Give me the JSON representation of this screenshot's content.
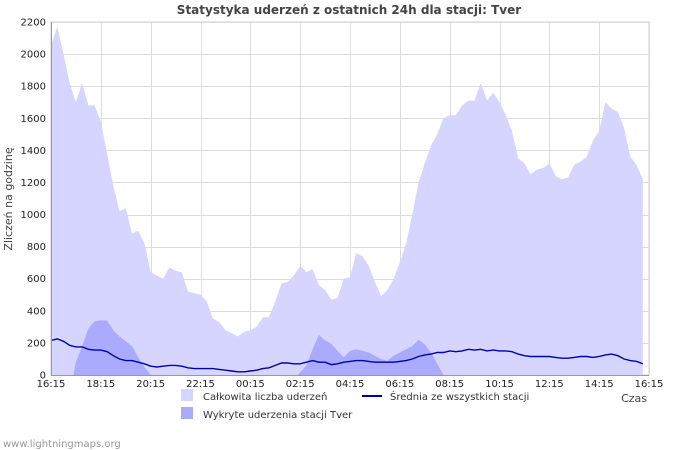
{
  "chart_data": {
    "type": "area",
    "title": "Statystyka uderzeń z ostatnich 24h dla stacji: Tver",
    "ylabel": "Zliczeń na godzinę",
    "xlabel": "Czas",
    "ylim": [
      0,
      2200
    ],
    "yticks": [
      0,
      200,
      400,
      600,
      800,
      1000,
      1200,
      1400,
      1600,
      1800,
      2000,
      2200
    ],
    "xlim": [
      0,
      24
    ],
    "xticks": [
      {
        "t": 0,
        "label": "16:15"
      },
      {
        "t": 2,
        "label": "18:15"
      },
      {
        "t": 4,
        "label": "20:15"
      },
      {
        "t": 6,
        "label": "22:15"
      },
      {
        "t": 8,
        "label": "00:15"
      },
      {
        "t": 10,
        "label": "02:15"
      },
      {
        "t": 12,
        "label": "04:15"
      },
      {
        "t": 14,
        "label": "06:15"
      },
      {
        "t": 16,
        "label": "08:15"
      },
      {
        "t": 18,
        "label": "10:15"
      },
      {
        "t": 20,
        "label": "12:15"
      },
      {
        "t": 22,
        "label": "14:15"
      },
      {
        "t": 24,
        "label": "16:15"
      }
    ],
    "series": [
      {
        "name": "Całkowita liczba uderzeń",
        "kind": "area",
        "color": "#d5d5ff",
        "points": [
          [
            0,
            2050
          ],
          [
            0.25,
            2170
          ],
          [
            0.5,
            2000
          ],
          [
            0.75,
            1820
          ],
          [
            1,
            1700
          ],
          [
            1.25,
            1820
          ],
          [
            1.5,
            1680
          ],
          [
            1.75,
            1680
          ],
          [
            2,
            1580
          ],
          [
            2.25,
            1380
          ],
          [
            2.5,
            1180
          ],
          [
            2.75,
            1020
          ],
          [
            3,
            1040
          ],
          [
            3.25,
            880
          ],
          [
            3.5,
            900
          ],
          [
            3.75,
            820
          ],
          [
            4,
            640
          ],
          [
            4.25,
            620
          ],
          [
            4.5,
            600
          ],
          [
            4.75,
            670
          ],
          [
            5,
            650
          ],
          [
            5.25,
            640
          ],
          [
            5.5,
            520
          ],
          [
            5.75,
            510
          ],
          [
            6,
            500
          ],
          [
            6.25,
            460
          ],
          [
            6.5,
            350
          ],
          [
            6.75,
            330
          ],
          [
            7,
            280
          ],
          [
            7.25,
            260
          ],
          [
            7.5,
            240
          ],
          [
            7.75,
            270
          ],
          [
            8,
            280
          ],
          [
            8.25,
            300
          ],
          [
            8.5,
            360
          ],
          [
            8.75,
            360
          ],
          [
            9,
            460
          ],
          [
            9.25,
            570
          ],
          [
            9.5,
            580
          ],
          [
            9.75,
            620
          ],
          [
            10,
            680
          ],
          [
            10.25,
            640
          ],
          [
            10.5,
            660
          ],
          [
            10.75,
            560
          ],
          [
            11,
            530
          ],
          [
            11.25,
            470
          ],
          [
            11.5,
            480
          ],
          [
            11.75,
            600
          ],
          [
            12,
            610
          ],
          [
            12.25,
            760
          ],
          [
            12.5,
            740
          ],
          [
            12.75,
            680
          ],
          [
            13,
            580
          ],
          [
            13.25,
            490
          ],
          [
            13.5,
            530
          ],
          [
            13.75,
            600
          ],
          [
            14,
            700
          ],
          [
            14.25,
            820
          ],
          [
            14.5,
            1000
          ],
          [
            14.75,
            1200
          ],
          [
            15,
            1320
          ],
          [
            15.25,
            1430
          ],
          [
            15.5,
            1500
          ],
          [
            15.75,
            1600
          ],
          [
            16,
            1620
          ],
          [
            16.25,
            1620
          ],
          [
            16.5,
            1680
          ],
          [
            16.75,
            1710
          ],
          [
            17,
            1710
          ],
          [
            17.25,
            1820
          ],
          [
            17.5,
            1710
          ],
          [
            17.75,
            1760
          ],
          [
            18,
            1700
          ],
          [
            18.25,
            1620
          ],
          [
            18.5,
            1520
          ],
          [
            18.75,
            1350
          ],
          [
            19,
            1320
          ],
          [
            19.25,
            1250
          ],
          [
            19.5,
            1280
          ],
          [
            19.75,
            1290
          ],
          [
            20,
            1320
          ],
          [
            20.25,
            1240
          ],
          [
            20.5,
            1220
          ],
          [
            20.75,
            1230
          ],
          [
            21,
            1310
          ],
          [
            21.25,
            1330
          ],
          [
            21.5,
            1360
          ],
          [
            21.75,
            1460
          ],
          [
            22,
            1520
          ],
          [
            22.25,
            1700
          ],
          [
            22.5,
            1660
          ],
          [
            22.75,
            1640
          ],
          [
            23,
            1540
          ],
          [
            23.25,
            1360
          ],
          [
            23.5,
            1310
          ],
          [
            23.75,
            1220
          ]
        ]
      },
      {
        "name": "Wykryte uderzenia stacji Tver",
        "kind": "area",
        "color": "#aaaaff",
        "points": [
          [
            0.9,
            0
          ],
          [
            1,
            80
          ],
          [
            1.25,
            180
          ],
          [
            1.5,
            290
          ],
          [
            1.75,
            335
          ],
          [
            2,
            340
          ],
          [
            2.25,
            340
          ],
          [
            2.5,
            280
          ],
          [
            2.75,
            240
          ],
          [
            3,
            210
          ],
          [
            3.25,
            180
          ],
          [
            3.5,
            110
          ],
          [
            3.75,
            50
          ],
          [
            4,
            0
          ],
          [
            9.9,
            0
          ],
          [
            10.25,
            60
          ],
          [
            10.5,
            160
          ],
          [
            10.75,
            250
          ],
          [
            11,
            215
          ],
          [
            11.25,
            195
          ],
          [
            11.5,
            150
          ],
          [
            11.75,
            110
          ],
          [
            12,
            150
          ],
          [
            12.25,
            160
          ],
          [
            12.5,
            150
          ],
          [
            12.75,
            140
          ],
          [
            13,
            120
          ],
          [
            13.25,
            100
          ],
          [
            13.5,
            90
          ],
          [
            13.75,
            120
          ],
          [
            14,
            140
          ],
          [
            14.25,
            160
          ],
          [
            14.5,
            180
          ],
          [
            14.75,
            220
          ],
          [
            15,
            190
          ],
          [
            15.25,
            140
          ],
          [
            15.5,
            70
          ],
          [
            15.75,
            0
          ]
        ]
      },
      {
        "name": "Średnia ze wszystkich stacji",
        "kind": "line",
        "color": "#0000aa",
        "points": [
          [
            0,
            215
          ],
          [
            0.25,
            225
          ],
          [
            0.5,
            210
          ],
          [
            0.75,
            185
          ],
          [
            1,
            175
          ],
          [
            1.25,
            175
          ],
          [
            1.5,
            160
          ],
          [
            1.75,
            155
          ],
          [
            2,
            155
          ],
          [
            2.25,
            145
          ],
          [
            2.5,
            120
          ],
          [
            2.75,
            100
          ],
          [
            3,
            90
          ],
          [
            3.25,
            90
          ],
          [
            3.5,
            80
          ],
          [
            3.75,
            70
          ],
          [
            4,
            55
          ],
          [
            4.25,
            50
          ],
          [
            4.5,
            55
          ],
          [
            4.75,
            60
          ],
          [
            5,
            60
          ],
          [
            5.25,
            55
          ],
          [
            5.5,
            45
          ],
          [
            5.75,
            40
          ],
          [
            6,
            40
          ],
          [
            6.25,
            40
          ],
          [
            6.5,
            40
          ],
          [
            6.75,
            35
          ],
          [
            7,
            30
          ],
          [
            7.25,
            25
          ],
          [
            7.5,
            20
          ],
          [
            7.75,
            20
          ],
          [
            8,
            25
          ],
          [
            8.25,
            30
          ],
          [
            8.5,
            40
          ],
          [
            8.75,
            45
          ],
          [
            9,
            60
          ],
          [
            9.25,
            75
          ],
          [
            9.5,
            75
          ],
          [
            9.75,
            70
          ],
          [
            10,
            70
          ],
          [
            10.25,
            80
          ],
          [
            10.5,
            90
          ],
          [
            10.75,
            80
          ],
          [
            11,
            80
          ],
          [
            11.25,
            65
          ],
          [
            11.5,
            70
          ],
          [
            11.75,
            80
          ],
          [
            12,
            85
          ],
          [
            12.25,
            90
          ],
          [
            12.5,
            90
          ],
          [
            12.75,
            85
          ],
          [
            13,
            80
          ],
          [
            13.25,
            80
          ],
          [
            13.5,
            80
          ],
          [
            13.75,
            80
          ],
          [
            14,
            85
          ],
          [
            14.25,
            90
          ],
          [
            14.5,
            100
          ],
          [
            14.75,
            115
          ],
          [
            15,
            125
          ],
          [
            15.25,
            130
          ],
          [
            15.5,
            140
          ],
          [
            15.75,
            140
          ],
          [
            16,
            150
          ],
          [
            16.25,
            145
          ],
          [
            16.5,
            150
          ],
          [
            16.75,
            160
          ],
          [
            17,
            155
          ],
          [
            17.25,
            160
          ],
          [
            17.5,
            150
          ],
          [
            17.75,
            155
          ],
          [
            18,
            150
          ],
          [
            18.25,
            150
          ],
          [
            18.5,
            145
          ],
          [
            18.75,
            130
          ],
          [
            19,
            120
          ],
          [
            19.25,
            115
          ],
          [
            19.5,
            115
          ],
          [
            19.75,
            115
          ],
          [
            20,
            115
          ],
          [
            20.25,
            110
          ],
          [
            20.5,
            105
          ],
          [
            20.75,
            105
          ],
          [
            21,
            110
          ],
          [
            21.25,
            115
          ],
          [
            21.5,
            115
          ],
          [
            21.75,
            110
          ],
          [
            22,
            115
          ],
          [
            22.25,
            125
          ],
          [
            22.5,
            130
          ],
          [
            22.75,
            120
          ],
          [
            23,
            100
          ],
          [
            23.25,
            90
          ],
          [
            23.5,
            85
          ],
          [
            23.75,
            70
          ]
        ]
      }
    ],
    "legend": [
      {
        "label": "Całkowita liczba uderzeń",
        "style": "box",
        "color": "#d5d5ff"
      },
      {
        "label": "Średnia ze wszystkich stacji",
        "style": "line",
        "color": "#0000aa"
      },
      {
        "label": "Wykryte uderzenia stacji Tver",
        "style": "box",
        "color": "#aaaaff"
      }
    ],
    "grid": true
  },
  "footer": "www.lightningmaps.org"
}
